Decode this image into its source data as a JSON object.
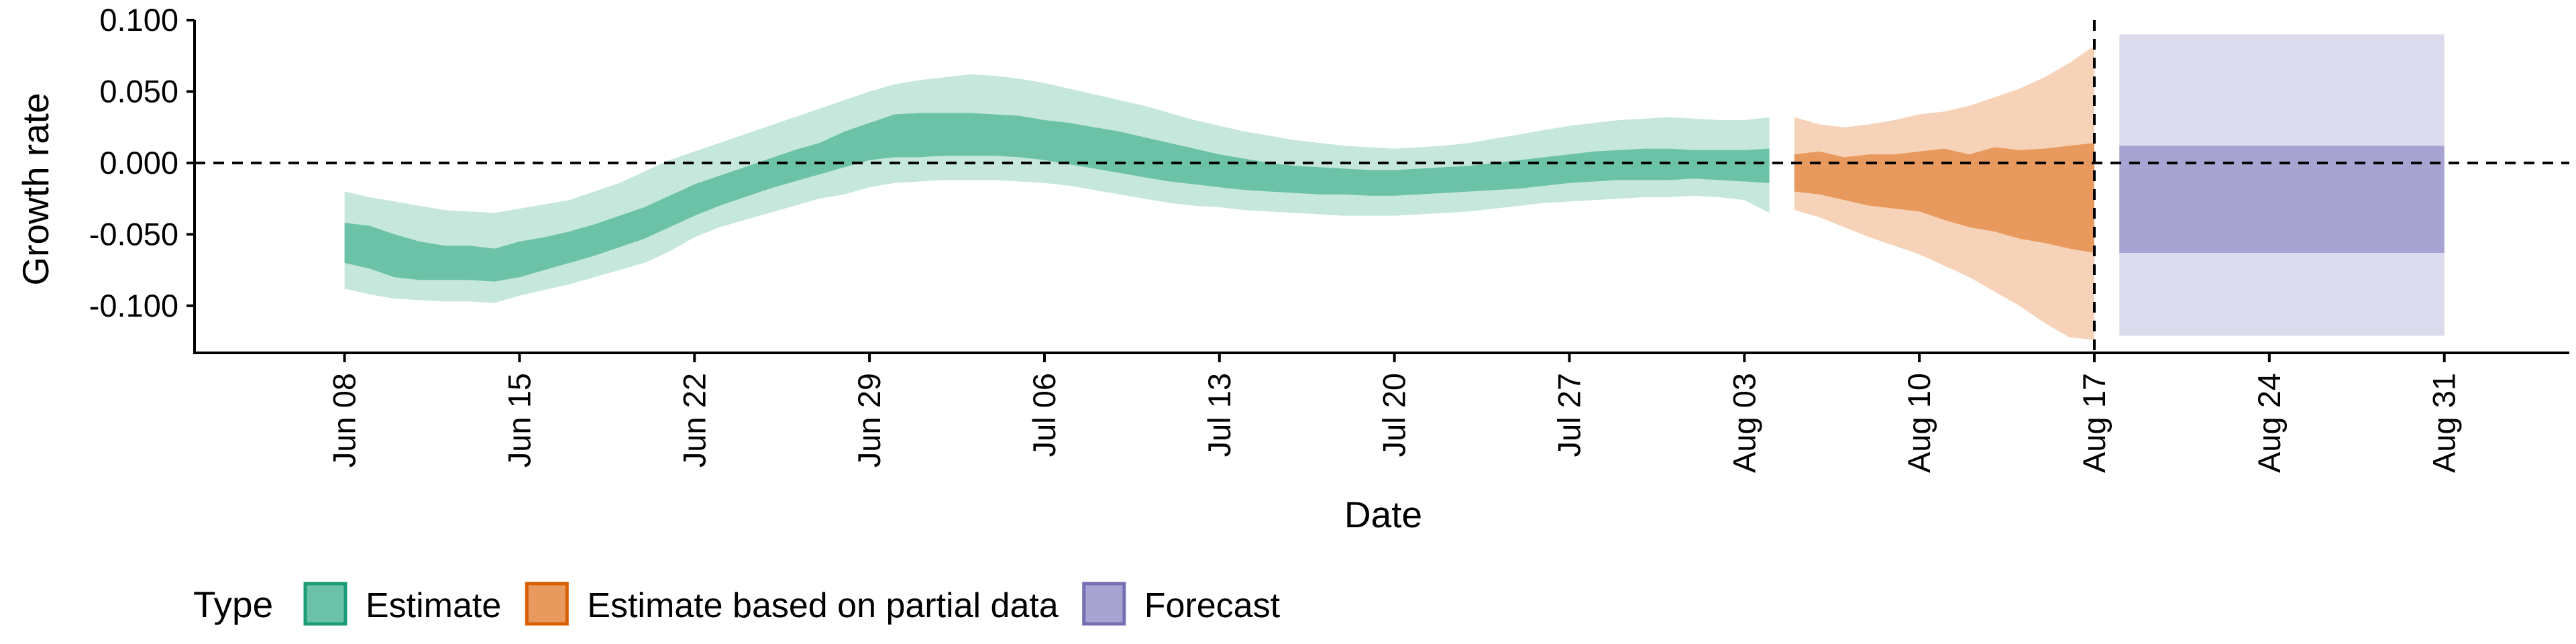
{
  "chart_data": {
    "type": "area",
    "xlabel": "Date",
    "ylabel": "Growth rate",
    "y_ticks": [
      "0.100",
      "0.050",
      "0.000",
      "-0.050",
      "-0.100"
    ],
    "y_tick_values": [
      0.1,
      0.05,
      0.0,
      -0.05,
      -0.1
    ],
    "ylim": [
      -0.133,
      0.1
    ],
    "xlim": [
      "2020-06-02",
      "2020-09-05"
    ],
    "x_ticks": [
      "Jun 08",
      "Jun 15",
      "Jun 22",
      "Jun 29",
      "Jul 06",
      "Jul 13",
      "Jul 20",
      "Jul 27",
      "Aug 03",
      "Aug 10",
      "Aug 17",
      "Aug 24",
      "Aug 31"
    ],
    "x_tick_dates": [
      "2020-06-08",
      "2020-06-15",
      "2020-06-22",
      "2020-06-29",
      "2020-07-06",
      "2020-07-13",
      "2020-07-20",
      "2020-07-27",
      "2020-08-03",
      "2020-08-10",
      "2020-08-17",
      "2020-08-24",
      "2020-08-31"
    ],
    "reference_lines": [
      {
        "axis": "y",
        "value": 0.0,
        "style": "dashed"
      },
      {
        "axis": "x",
        "value": "2020-08-17",
        "style": "dashed"
      }
    ],
    "legend": {
      "title": "Type",
      "placement": "bottom-left",
      "entries": [
        {
          "label": "Estimate",
          "fill": "#6cc2a7",
          "border": "#1b9e77"
        },
        {
          "label": "Estimate based on partial data",
          "fill": "#e89a5e",
          "border": "#d95f02"
        },
        {
          "label": "Forecast",
          "fill": "#a8a4d1",
          "border": "#7570b3"
        }
      ]
    },
    "series": [
      {
        "type_key": "Estimate",
        "inner_color": "#6cc2a7",
        "outer_color": "#c5e7dc",
        "dates": [
          "2020-06-08",
          "2020-06-09",
          "2020-06-10",
          "2020-06-11",
          "2020-06-12",
          "2020-06-13",
          "2020-06-14",
          "2020-06-15",
          "2020-06-16",
          "2020-06-17",
          "2020-06-18",
          "2020-06-19",
          "2020-06-20",
          "2020-06-21",
          "2020-06-22",
          "2020-06-23",
          "2020-06-24",
          "2020-06-25",
          "2020-06-26",
          "2020-06-27",
          "2020-06-28",
          "2020-06-29",
          "2020-06-30",
          "2020-07-01",
          "2020-07-02",
          "2020-07-03",
          "2020-07-04",
          "2020-07-05",
          "2020-07-06",
          "2020-07-07",
          "2020-07-08",
          "2020-07-09",
          "2020-07-10",
          "2020-07-11",
          "2020-07-12",
          "2020-07-13",
          "2020-07-14",
          "2020-07-15",
          "2020-07-16",
          "2020-07-17",
          "2020-07-18",
          "2020-07-19",
          "2020-07-20",
          "2020-07-21",
          "2020-07-22",
          "2020-07-23",
          "2020-07-24",
          "2020-07-25",
          "2020-07-26",
          "2020-07-27",
          "2020-07-28",
          "2020-07-29",
          "2020-07-30",
          "2020-07-31",
          "2020-08-01",
          "2020-08-02",
          "2020-08-03",
          "2020-08-04"
        ],
        "outer_low": [
          -0.088,
          -0.092,
          -0.095,
          -0.096,
          -0.097,
          -0.097,
          -0.098,
          -0.093,
          -0.089,
          -0.085,
          -0.08,
          -0.075,
          -0.07,
          -0.062,
          -0.052,
          -0.045,
          -0.04,
          -0.035,
          -0.03,
          -0.025,
          -0.022,
          -0.017,
          -0.014,
          -0.013,
          -0.012,
          -0.012,
          -0.012,
          -0.013,
          -0.014,
          -0.016,
          -0.019,
          -0.022,
          -0.025,
          -0.028,
          -0.03,
          -0.031,
          -0.033,
          -0.034,
          -0.035,
          -0.036,
          -0.037,
          -0.037,
          -0.037,
          -0.036,
          -0.035,
          -0.034,
          -0.032,
          -0.03,
          -0.028,
          -0.027,
          -0.026,
          -0.025,
          -0.024,
          -0.024,
          -0.023,
          -0.024,
          -0.026,
          -0.035
        ],
        "lower": [
          -0.07,
          -0.074,
          -0.08,
          -0.082,
          -0.082,
          -0.082,
          -0.083,
          -0.08,
          -0.075,
          -0.07,
          -0.065,
          -0.059,
          -0.053,
          -0.045,
          -0.037,
          -0.03,
          -0.024,
          -0.018,
          -0.013,
          -0.008,
          -0.003,
          0.002,
          0.004,
          0.004,
          0.005,
          0.005,
          0.005,
          0.004,
          0.002,
          -0.001,
          -0.004,
          -0.007,
          -0.01,
          -0.013,
          -0.015,
          -0.017,
          -0.019,
          -0.02,
          -0.021,
          -0.022,
          -0.022,
          -0.023,
          -0.023,
          -0.022,
          -0.021,
          -0.02,
          -0.019,
          -0.018,
          -0.016,
          -0.014,
          -0.013,
          -0.012,
          -0.012,
          -0.012,
          -0.011,
          -0.012,
          -0.013,
          -0.014
        ],
        "upper": [
          -0.042,
          -0.044,
          -0.05,
          -0.055,
          -0.058,
          -0.058,
          -0.06,
          -0.055,
          -0.052,
          -0.048,
          -0.043,
          -0.037,
          -0.031,
          -0.023,
          -0.015,
          -0.009,
          -0.003,
          0.003,
          0.009,
          0.014,
          0.022,
          0.028,
          0.034,
          0.035,
          0.035,
          0.035,
          0.034,
          0.033,
          0.03,
          0.028,
          0.025,
          0.022,
          0.018,
          0.014,
          0.01,
          0.006,
          0.003,
          0.0,
          -0.002,
          -0.003,
          -0.004,
          -0.005,
          -0.005,
          -0.004,
          -0.003,
          -0.002,
          0.0,
          0.002,
          0.004,
          0.006,
          0.008,
          0.009,
          0.01,
          0.01,
          0.009,
          0.009,
          0.009,
          0.01
        ],
        "outer_high": [
          -0.02,
          -0.024,
          -0.027,
          -0.03,
          -0.033,
          -0.034,
          -0.035,
          -0.032,
          -0.029,
          -0.026,
          -0.02,
          -0.014,
          -0.006,
          0.002,
          0.008,
          0.014,
          0.02,
          0.026,
          0.032,
          0.038,
          0.044,
          0.05,
          0.055,
          0.058,
          0.06,
          0.062,
          0.061,
          0.059,
          0.056,
          0.052,
          0.048,
          0.044,
          0.04,
          0.035,
          0.03,
          0.026,
          0.022,
          0.019,
          0.016,
          0.014,
          0.012,
          0.011,
          0.01,
          0.011,
          0.012,
          0.014,
          0.017,
          0.02,
          0.023,
          0.026,
          0.028,
          0.03,
          0.031,
          0.032,
          0.031,
          0.03,
          0.03,
          0.032
        ]
      },
      {
        "type_key": "Estimate based on partial data",
        "inner_color": "#e89a5e",
        "outer_color": "#f6d3b8",
        "dates": [
          "2020-08-05",
          "2020-08-06",
          "2020-08-07",
          "2020-08-08",
          "2020-08-09",
          "2020-08-10",
          "2020-08-11",
          "2020-08-12",
          "2020-08-13",
          "2020-08-14",
          "2020-08-15",
          "2020-08-16",
          "2020-08-17"
        ],
        "outer_low": [
          -0.033,
          -0.038,
          -0.045,
          -0.052,
          -0.058,
          -0.064,
          -0.072,
          -0.08,
          -0.09,
          -0.1,
          -0.112,
          -0.122,
          -0.124
        ],
        "lower": [
          -0.02,
          -0.022,
          -0.026,
          -0.03,
          -0.032,
          -0.034,
          -0.04,
          -0.045,
          -0.048,
          -0.053,
          -0.056,
          -0.06,
          -0.063
        ],
        "upper": [
          0.006,
          0.008,
          0.004,
          0.006,
          0.006,
          0.008,
          0.01,
          0.006,
          0.011,
          0.009,
          0.01,
          0.012,
          0.014
        ],
        "outer_high": [
          0.032,
          0.027,
          0.025,
          0.027,
          0.03,
          0.034,
          0.036,
          0.04,
          0.046,
          0.052,
          0.06,
          0.07,
          0.082
        ]
      },
      {
        "type_key": "Forecast",
        "inner_color": "#a8a4d1",
        "outer_color": "#dcdbee",
        "dates": [
          "2020-08-18",
          "2020-08-31"
        ],
        "outer_low": [
          -0.121,
          -0.121
        ],
        "lower": [
          -0.063,
          -0.063
        ],
        "upper": [
          0.012,
          0.012
        ],
        "outer_high": [
          0.09,
          0.09
        ]
      }
    ]
  }
}
